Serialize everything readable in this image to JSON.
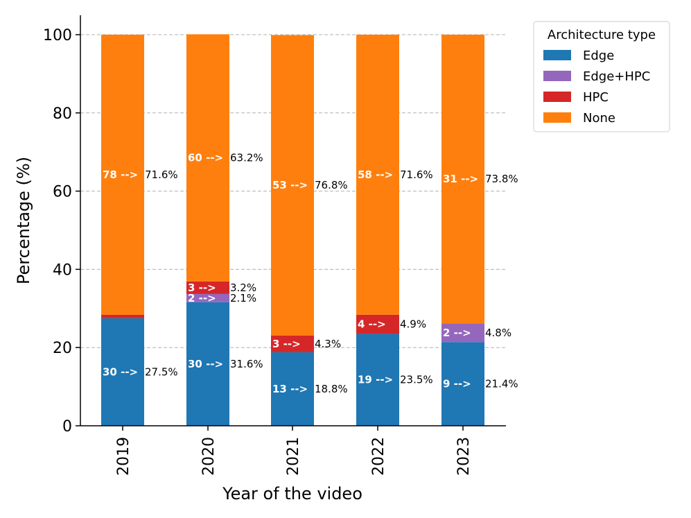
{
  "chart_data": {
    "type": "bar",
    "stacked": true,
    "xlabel": "Year of the video",
    "ylabel": "Percentage (%)",
    "ylim": [
      0,
      100
    ],
    "yticks": [
      "0",
      "20",
      "40",
      "60",
      "80",
      "100"
    ],
    "categories": [
      "2019",
      "2020",
      "2021",
      "2022",
      "2023"
    ],
    "grid": "horizontal dashed",
    "legend": {
      "title": "Architecture type",
      "placement": "outside top-right"
    },
    "series": [
      {
        "name": "Edge",
        "color": "#1f77b4",
        "values": [
          27.5,
          31.6,
          18.8,
          23.5,
          21.4
        ],
        "labels": [
          "30 -->",
          "30 -->",
          "13 -->",
          "19 -->",
          "9 -->"
        ],
        "pct_labels": [
          "27.5%",
          "31.6%",
          "18.8%",
          "23.5%",
          "21.4%"
        ]
      },
      {
        "name": "Edge+HPC",
        "color": "#9467bd",
        "values": [
          0,
          2.1,
          0,
          0,
          4.8
        ],
        "labels": [
          "",
          "2 -->",
          "",
          "",
          "2 -->"
        ],
        "pct_labels": [
          "",
          "2.1%",
          "",
          "",
          "4.8%"
        ]
      },
      {
        "name": "HPC",
        "color": "#d62728",
        "values": [
          0.9,
          3.2,
          4.3,
          4.9,
          0
        ],
        "labels": [
          "",
          "3 -->",
          "3 -->",
          "4 -->",
          ""
        ],
        "pct_labels": [
          "",
          "3.2%",
          "4.3%",
          "4.9%",
          ""
        ]
      },
      {
        "name": "None",
        "color": "#ff7f0e",
        "values": [
          71.6,
          63.2,
          76.8,
          71.6,
          73.8
        ],
        "labels": [
          "78 -->",
          "60 -->",
          "53 -->",
          "58 -->",
          "31 -->"
        ],
        "pct_labels": [
          "71.6%",
          "63.2%",
          "76.8%",
          "71.6%",
          "73.8%"
        ]
      }
    ]
  }
}
